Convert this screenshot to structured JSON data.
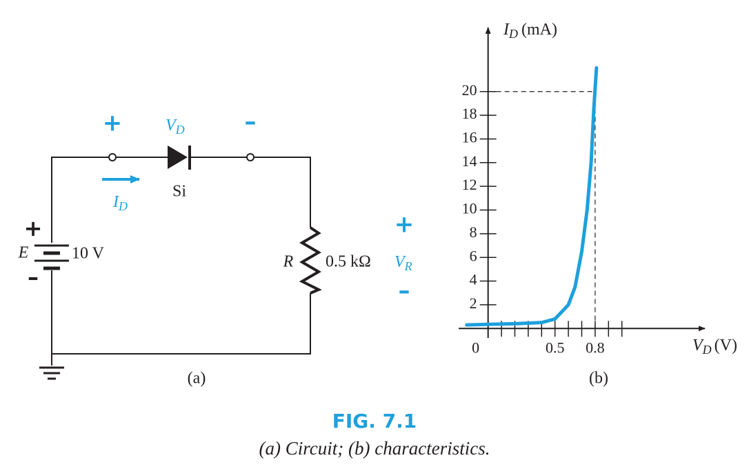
{
  "circuit": {
    "vd_plus": "+",
    "vd_label": {
      "symbol": "V",
      "subscript": "D"
    },
    "vd_minus": "–",
    "diode_label": "Si",
    "current_label": {
      "symbol": "I",
      "subscript": "D"
    },
    "battery_plus": "+",
    "battery_label": "E",
    "battery_value": "10 V",
    "battery_minus": "–",
    "resistor_label": "R",
    "resistor_value": "0.5 kΩ",
    "vr_plus": "+",
    "vr_label": {
      "symbol": "V",
      "subscript": "R"
    },
    "vr_minus": "–",
    "caption": "(a)"
  },
  "chart_data": {
    "type": "line",
    "y_label": {
      "symbol": "I",
      "subscript": "D",
      "unit": "(mA)"
    },
    "x_label": {
      "symbol": "V",
      "subscript": "D",
      "unit": "(V)"
    },
    "x": [
      -0.16,
      0,
      0.2,
      0.4,
      0.5,
      0.6,
      0.65,
      0.7,
      0.74,
      0.77,
      0.79,
      0.81
    ],
    "series": [
      {
        "color": "#1ea0dc",
        "values": [
          0.3,
          0.35,
          0.4,
          0.5,
          0.8,
          2,
          3.5,
          6.5,
          10,
          14,
          18.5,
          22
        ]
      }
    ],
    "xlim": [
      -0.22,
      1.62
    ],
    "ylim": [
      -0.8,
      25.4
    ],
    "xticks": [
      0,
      0.5,
      0.8
    ],
    "xminorticks": [
      0.1,
      0.2,
      0.3,
      0.4,
      0.5,
      0.6,
      0.7,
      0.8,
      0.9,
      1.0
    ],
    "yticks": [
      2,
      4,
      6,
      8,
      10,
      12,
      14,
      16,
      18,
      20
    ],
    "reference": {
      "x": 0.8,
      "y": 20
    },
    "caption": "(b)"
  },
  "figure": {
    "number": "FIG. 7.1",
    "caption": "(a) Circuit; (b) characteristics."
  }
}
